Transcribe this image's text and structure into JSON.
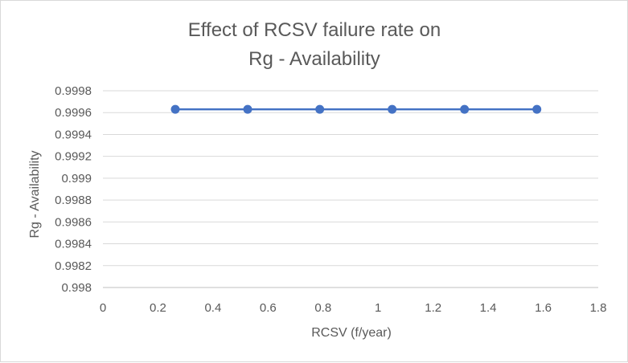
{
  "chart_data": {
    "type": "scatter",
    "title_lines": [
      "Effect of RCSV failure rate on",
      "Rg - Availability"
    ],
    "xlabel": "RCSV (f/year)",
    "ylabel": "Rg - Availability",
    "xlim": [
      0,
      1.8
    ],
    "ylim": [
      0.998,
      0.9998
    ],
    "x_ticks": [
      0,
      0.2,
      0.4,
      0.6,
      0.8,
      1,
      1.2,
      1.4,
      1.6,
      1.8
    ],
    "x_tick_labels": [
      "0",
      "0.2",
      "0.4",
      "0.6",
      "0.8",
      "1",
      "1.2",
      "1.4",
      "1.6",
      "1.8"
    ],
    "y_ticks": [
      0.998,
      0.9982,
      0.9984,
      0.9986,
      0.9988,
      0.999,
      0.9992,
      0.9994,
      0.9996,
      0.9998
    ],
    "y_tick_labels": [
      "0.998",
      "0.9982",
      "0.9984",
      "0.9986",
      "0.9988",
      "0.999",
      "0.9992",
      "0.9994",
      "0.9996",
      "0.9998"
    ],
    "grid": "horizontal",
    "legend": "none",
    "series": [
      {
        "name": "Rg - Availability",
        "color": "#4472c4",
        "x": [
          0.263,
          0.526,
          0.788,
          1.051,
          1.314,
          1.577
        ],
        "y": [
          0.99963,
          0.99963,
          0.99963,
          0.99963,
          0.99963,
          0.99963
        ]
      }
    ]
  }
}
